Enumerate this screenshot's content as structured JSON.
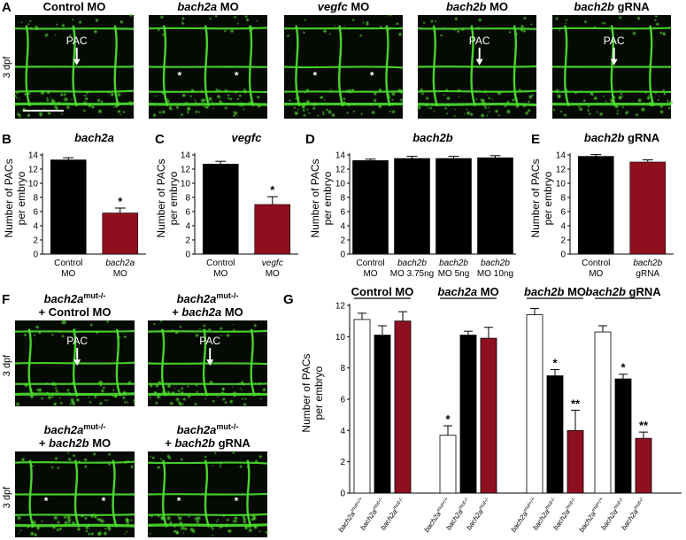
{
  "panel_labels": {
    "A": "A",
    "B": "B",
    "C": "C",
    "D": "D",
    "E": "E",
    "F": "F",
    "G": "G"
  },
  "panel_a": {
    "row_label": "3 dpf",
    "images": [
      {
        "title_parts": [
          {
            "t": "Control MO",
            "it": false
          }
        ],
        "marks": [
          {
            "type": "arrow",
            "label": "PAC"
          }
        ]
      },
      {
        "title_parts": [
          {
            "t": "bach2a",
            "it": true
          },
          {
            "t": " MO",
            "it": false
          }
        ],
        "marks": [
          {
            "type": "star"
          },
          {
            "type": "star"
          }
        ]
      },
      {
        "title_parts": [
          {
            "t": "vegfc",
            "it": true
          },
          {
            "t": " MO",
            "it": false
          }
        ],
        "marks": [
          {
            "type": "star"
          },
          {
            "type": "star"
          }
        ]
      },
      {
        "title_parts": [
          {
            "t": "bach2b",
            "it": true
          },
          {
            "t": " MO",
            "it": false
          }
        ],
        "marks": [
          {
            "type": "arrow",
            "label": "PAC"
          }
        ]
      },
      {
        "title_parts": [
          {
            "t": "bach2b",
            "it": true
          },
          {
            "t": " gRNA",
            "it": false
          }
        ],
        "marks": [
          {
            "type": "arrow",
            "label": "PAC"
          }
        ]
      }
    ],
    "arrow_label": "PAC",
    "star": "*"
  },
  "panel_f": {
    "row_label": "3 dpf",
    "images": [
      {
        "line1": "bach2a",
        "sup": "mut-/-",
        "line2_parts": [
          {
            "t": "+ Control MO",
            "it": false
          }
        ],
        "marks": [
          {
            "type": "arrow",
            "label": "PAC"
          }
        ]
      },
      {
        "line1": "bach2a",
        "sup": "mut-/-",
        "line2_parts": [
          {
            "t": "+ ",
            "it": false
          },
          {
            "t": "bach2a",
            "it": true
          },
          {
            "t": " MO",
            "it": false
          }
        ],
        "marks": [
          {
            "type": "arrow",
            "label": "PAC"
          }
        ]
      },
      {
        "line1": "bach2a",
        "sup": "mut-/-",
        "line2_parts": [
          {
            "t": "+ ",
            "it": false
          },
          {
            "t": "bach2b",
            "it": true
          },
          {
            "t": " MO",
            "it": false
          }
        ],
        "marks": [
          {
            "type": "star"
          },
          {
            "type": "star"
          }
        ]
      },
      {
        "line1": "bach2a",
        "sup": "mut-/-",
        "line2_parts": [
          {
            "t": "+ ",
            "it": false
          },
          {
            "t": "bach2b",
            "it": true
          },
          {
            "t": " gRNA",
            "it": false
          }
        ],
        "marks": [
          {
            "type": "star"
          },
          {
            "type": "star"
          }
        ]
      }
    ]
  },
  "colors": {
    "black": "#000000",
    "red": "#8e1020",
    "white": "#ffffff",
    "vessel": "#4be02e",
    "bg": "#060a04"
  },
  "chart_data": [
    {
      "panel": "B",
      "type": "bar",
      "title_parts": [
        {
          "t": "bach2a",
          "it": true
        }
      ],
      "ylabel": "Number of PACs per embryo",
      "ylim": [
        0,
        14
      ],
      "yticks": [
        0,
        2,
        4,
        6,
        8,
        10,
        12,
        14
      ],
      "categories": [
        {
          "l1": "Control",
          "l2": "MO",
          "it1": false
        },
        {
          "l1": "bach2a",
          "l2": "MO",
          "it1": true
        }
      ],
      "values": [
        13.3,
        5.8
      ],
      "errors": [
        0.3,
        0.7
      ],
      "colors": [
        "#000000",
        "#8e1020"
      ],
      "sig": [
        "",
        "*"
      ]
    },
    {
      "panel": "C",
      "type": "bar",
      "title_parts": [
        {
          "t": "vegfc",
          "it": true
        }
      ],
      "ylabel": "Number of PACs per embryo",
      "ylim": [
        0,
        14
      ],
      "yticks": [
        0,
        2,
        4,
        6,
        8,
        10,
        12,
        14
      ],
      "categories": [
        {
          "l1": "Control",
          "l2": "MO",
          "it1": false
        },
        {
          "l1": "vegfc",
          "l2": "MO",
          "it1": true
        }
      ],
      "values": [
        12.7,
        7.0
      ],
      "errors": [
        0.4,
        1.1
      ],
      "colors": [
        "#000000",
        "#8e1020"
      ],
      "sig": [
        "",
        "*"
      ]
    },
    {
      "panel": "D",
      "type": "bar",
      "title_parts": [
        {
          "t": "bach2b",
          "it": true
        }
      ],
      "ylabel": "Number of PACs per embryo",
      "ylim": [
        0,
        14
      ],
      "yticks": [
        0,
        2,
        4,
        6,
        8,
        10,
        12,
        14
      ],
      "categories": [
        {
          "l1": "Control",
          "l2": "MO",
          "it1": false
        },
        {
          "l1": "bach2b",
          "l2": "MO 3.75ng",
          "it1": true
        },
        {
          "l1": "bach2b",
          "l2": "MO 5ng",
          "it1": true
        },
        {
          "l1": "bach2b",
          "l2": "MO 10ng",
          "it1": true
        }
      ],
      "values": [
        13.2,
        13.5,
        13.5,
        13.6
      ],
      "errors": [
        0.2,
        0.3,
        0.3,
        0.3
      ],
      "colors": [
        "#000000",
        "#000000",
        "#000000",
        "#000000"
      ],
      "sig": [
        "",
        "",
        "",
        ""
      ]
    },
    {
      "panel": "E",
      "type": "bar",
      "title_parts": [
        {
          "t": "bach2b",
          "it": true
        },
        {
          "t": " gRNA",
          "it": false
        }
      ],
      "ylabel": "Number of PACs per embryo",
      "ylim": [
        0,
        14
      ],
      "yticks": [
        0,
        2,
        4,
        6,
        8,
        10,
        12,
        14
      ],
      "categories": [
        {
          "l1": "Control",
          "l2": "MO",
          "it1": false
        },
        {
          "l1": "bach2b",
          "l2": "gRNA",
          "it1": true
        }
      ],
      "values": [
        13.8,
        13.0
      ],
      "errors": [
        0.25,
        0.3
      ],
      "colors": [
        "#000000",
        "#8e1020"
      ],
      "sig": [
        "",
        ""
      ]
    },
    {
      "panel": "G",
      "type": "bar",
      "ylabel": "Number of PACs per embryo",
      "ylim": [
        0,
        12
      ],
      "yticks": [
        0,
        2,
        4,
        6,
        8,
        10,
        12
      ],
      "groups": [
        {
          "title_parts": [
            {
              "t": "Control MO",
              "it": false
            }
          ],
          "values": [
            11.1,
            10.1,
            11.0
          ],
          "errors": [
            0.4,
            0.6,
            0.6
          ],
          "sig": [
            "",
            "",
            ""
          ]
        },
        {
          "title_parts": [
            {
              "t": "bach2a",
              "it": true
            },
            {
              "t": " MO",
              "it": false
            }
          ],
          "values": [
            3.7,
            10.1,
            9.9
          ],
          "errors": [
            0.6,
            0.25,
            0.7
          ],
          "sig": [
            "*",
            "",
            ""
          ]
        },
        {
          "title_parts": [
            {
              "t": "bach2b",
              "it": true
            },
            {
              "t": " MO",
              "it": false
            }
          ],
          "values": [
            11.4,
            7.5,
            4.0
          ],
          "errors": [
            0.4,
            0.4,
            1.3
          ],
          "sig": [
            "",
            "*",
            "**"
          ]
        },
        {
          "title_parts": [
            {
              "t": "bach2b",
              "it": true
            },
            {
              "t": " gRNA",
              "it": false
            }
          ],
          "values": [
            10.3,
            7.3,
            3.5
          ],
          "errors": [
            0.4,
            0.3,
            0.4
          ],
          "sig": [
            "",
            "*",
            "**"
          ]
        }
      ],
      "genotypes": [
        {
          "base": "bach2a",
          "sup": "mut+/+"
        },
        {
          "base": "bach2a",
          "sup": "mut-/-"
        },
        {
          "base": "bach2a",
          "sup": "mut-/-"
        }
      ],
      "colors": [
        "#ffffff",
        "#000000",
        "#8e1020"
      ]
    }
  ]
}
